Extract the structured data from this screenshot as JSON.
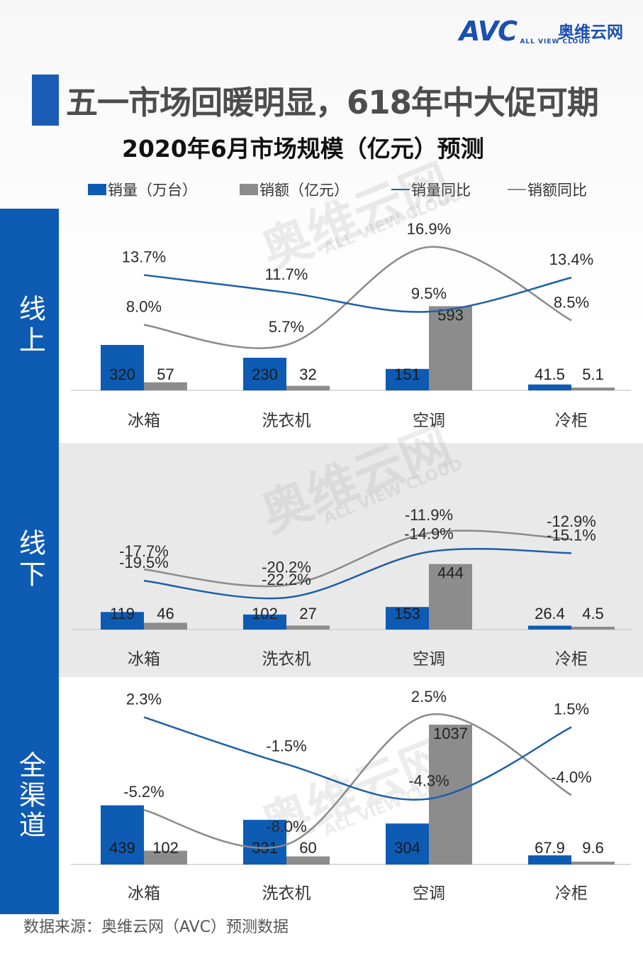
{
  "logo": {
    "mark": "AVC",
    "cn": "奥维云网",
    "en": "ALL VIEW CLOUD"
  },
  "title": "五一市场回暖明显，618年中大促可期",
  "subtitle": "2020年6月市场规模（亿元）预测",
  "legend": {
    "vol": "销量（万台）",
    "amt": "销额（亿元）",
    "vol_yoy": "销量同比",
    "amt_yoy": "销额同比"
  },
  "colors": {
    "vol": "#0e5bb4",
    "amt": "#8c8c8c",
    "vol_line": "#1d5fa8",
    "amt_line": "#8a8a8a",
    "side": "#0e5bb4"
  },
  "watermark": {
    "text": "奥维云网",
    "sub": "ALL VIEW CLOUD"
  },
  "sections": {
    "online": "线上",
    "offline": "线下",
    "all": "全渠道"
  },
  "footer": "数据来源：奥维云网（AVC）预测数据",
  "chart_data": [
    {
      "type": "bar",
      "panel": "线上",
      "categories": [
        "冰箱",
        "洗衣机",
        "空调",
        "冷柜"
      ],
      "series": [
        {
          "name": "销量（万台）",
          "values": [
            320,
            230,
            151,
            41.5
          ],
          "labels": [
            "320",
            "230",
            "151",
            "41.5"
          ]
        },
        {
          "name": "销额（亿元）",
          "values": [
            57,
            32,
            593,
            5.1
          ],
          "labels": [
            "57",
            "32",
            "593",
            "5.1"
          ]
        },
        {
          "name": "销量同比",
          "type": "line",
          "values": [
            13.7,
            11.7,
            9.5,
            13.4
          ],
          "labels": [
            "13.7%",
            "11.7%",
            "9.5%",
            "13.4%"
          ]
        },
        {
          "name": "销额同比",
          "type": "line",
          "values": [
            8.0,
            5.7,
            16.9,
            8.5
          ],
          "labels": [
            "8.0%",
            "5.7%",
            "16.9%",
            "8.5%"
          ]
        }
      ]
    },
    {
      "type": "bar",
      "panel": "线下",
      "categories": [
        "冰箱",
        "洗衣机",
        "空调",
        "冷柜"
      ],
      "series": [
        {
          "name": "销量（万台）",
          "values": [
            119,
            102,
            153,
            26.4
          ],
          "labels": [
            "119",
            "102",
            "153",
            "26.4"
          ]
        },
        {
          "name": "销额（亿元）",
          "values": [
            46,
            27,
            444,
            4.5
          ],
          "labels": [
            "46",
            "27",
            "444",
            "4.5"
          ]
        },
        {
          "name": "销量同比",
          "type": "line",
          "values": [
            -19.5,
            -22.2,
            -14.9,
            -15.1
          ],
          "labels": [
            "-19.5%",
            "-22.2%",
            "-14.9%",
            "-15.1%"
          ]
        },
        {
          "name": "销额同比",
          "type": "line",
          "values": [
            -17.7,
            -20.2,
            -11.9,
            -12.9
          ],
          "labels": [
            "-17.7%",
            "-20.2%",
            "-11.9%",
            "-12.9%"
          ]
        }
      ]
    },
    {
      "type": "bar",
      "panel": "全渠道",
      "categories": [
        "冰箱",
        "洗衣机",
        "空调",
        "冷柜"
      ],
      "series": [
        {
          "name": "销量（万台）",
          "values": [
            439,
            331,
            304,
            67.9
          ],
          "labels": [
            "439",
            "331",
            "304",
            "67.9"
          ]
        },
        {
          "name": "销额（亿元）",
          "values": [
            102,
            60,
            1037,
            9.6
          ],
          "labels": [
            "102",
            "60",
            "1037",
            "9.6"
          ]
        },
        {
          "name": "销量同比",
          "type": "line",
          "values": [
            2.3,
            -1.5,
            -4.3,
            1.5
          ],
          "labels": [
            "2.3%",
            "-1.5%",
            "-4.3%",
            "1.5%"
          ]
        },
        {
          "name": "销额同比",
          "type": "line",
          "values": [
            -5.2,
            -8.0,
            2.5,
            -4.0
          ],
          "labels": [
            "-5.2%",
            "-8.0%",
            "2.5%",
            "-4.0%"
          ]
        }
      ]
    }
  ]
}
